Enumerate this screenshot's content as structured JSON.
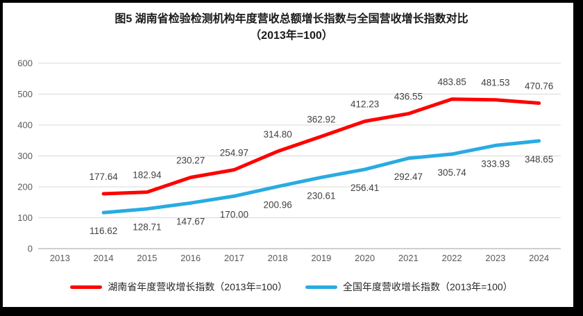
{
  "chart_data": {
    "type": "line",
    "title": "图5 湖南省检验检测机构年度营收总额增长指数与全国营收增长指数对比",
    "subtitle": "（2013年=100）",
    "categories": [
      "2013",
      "2014",
      "2015",
      "2016",
      "2017",
      "2018",
      "2019",
      "2020",
      "2021",
      "2022",
      "2023",
      "2024"
    ],
    "series": [
      {
        "id": "hunan",
        "name": "湖南省年度营收增长指数（2013年=100）",
        "color": "#FF0000",
        "label_position": "above",
        "values": [
          null,
          177.64,
          182.94,
          230.27,
          254.97,
          314.8,
          362.92,
          412.23,
          436.55,
          483.85,
          481.53,
          470.76
        ]
      },
      {
        "id": "national",
        "name": "全国年度营收增长指数（2013年=100）",
        "color": "#29ABE2",
        "label_position": "below",
        "values": [
          null,
          116.62,
          128.71,
          147.67,
          170.0,
          200.96,
          230.61,
          256.41,
          292.47,
          305.74,
          333.93,
          348.65
        ]
      }
    ],
    "yticks": [
      0,
      100,
      200,
      300,
      400,
      500,
      600
    ],
    "ylim": [
      0,
      600
    ],
    "grid": true,
    "legend_position": "bottom",
    "colors": {
      "gridline": "#D9D9D9",
      "axis_line": "#BFBFBF",
      "tick_label": "#595959",
      "data_label": "#404040"
    }
  }
}
